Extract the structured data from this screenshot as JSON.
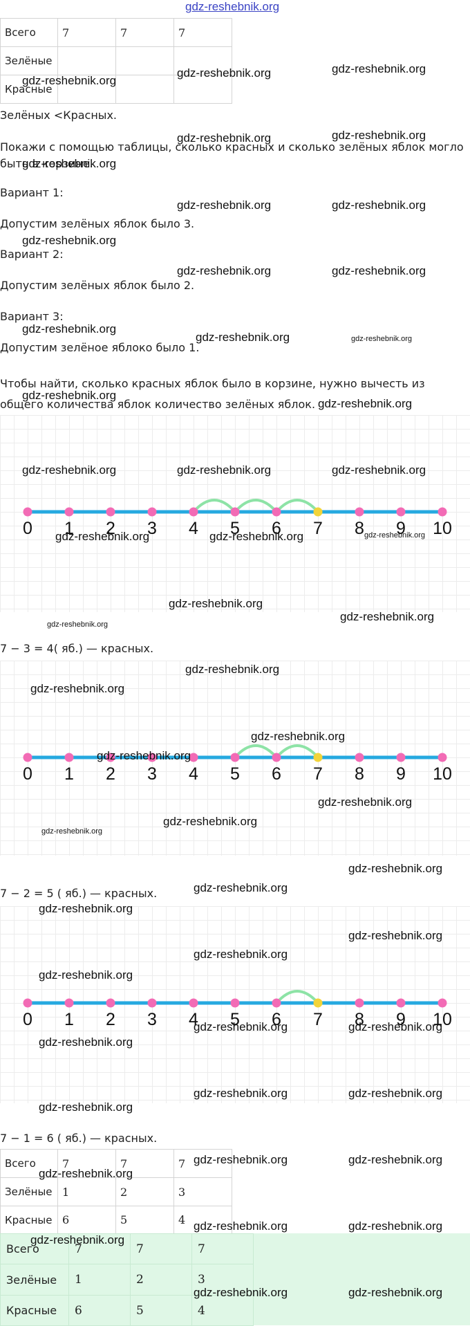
{
  "watermark_text": "gdz-reshebnik.org",
  "table_top": {
    "rows": [
      {
        "label": "Всего",
        "values": [
          "7",
          "7",
          "7"
        ]
      },
      {
        "label": "Зелёные",
        "values": [
          "",
          "",
          ""
        ]
      },
      {
        "label": "Красные",
        "values": [
          "",
          "",
          ""
        ]
      }
    ]
  },
  "text": {
    "compare": "Зелёных <Красных.",
    "task": "Покажи с помощью таблицы, сколько красных и сколько зелёных яблок могло быть в корзине.",
    "v1": "Вариант 1:",
    "v1_assume": "Допустим зелёных яблок было 3.",
    "v2": "Вариант 2:",
    "v2_assume": "Допустим зелёных яблок было 2.",
    "v3": "Вариант 3:",
    "v3_assume": "Допустим зелёное яблоко было 1.",
    "explain": "Чтобы найти, сколько красных яблок было в корзине, нужно вычесть из общего количества яблок количество зелёных яблок.",
    "eq1": "7 − 3 = 4( яб.) — красных.",
    "eq2": "7 − 2 = 5 ( яб.) — красных.",
    "eq3": "7 − 1 = 6 ( яб.) — красных."
  },
  "number_lines": {
    "labels": [
      "0",
      "1",
      "2",
      "3",
      "4",
      "5",
      "6",
      "7",
      "8",
      "9",
      "10"
    ],
    "colors": {
      "line": "#26a9e0",
      "point": "#f26bb5",
      "target": "#f2d43a",
      "arc": "#8de3a6"
    },
    "diagrams": [
      {
        "target": 7,
        "arcs_from": 4
      },
      {
        "target": 7,
        "arcs_from": 5
      },
      {
        "target": 7,
        "arcs_from": 6
      }
    ]
  },
  "table_result": {
    "rows": [
      {
        "label": "Всего",
        "values": [
          "7",
          "7",
          "7"
        ]
      },
      {
        "label": "Зелёные",
        "values": [
          "1",
          "2",
          "3"
        ]
      },
      {
        "label": "Красные",
        "values": [
          "6",
          "5",
          "4"
        ]
      }
    ]
  },
  "table_result_highlight": {
    "background": "#dff7e6",
    "rows": [
      {
        "label": "Всего",
        "values": [
          "7",
          "7",
          "7"
        ]
      },
      {
        "label": "Зелёные",
        "values": [
          "1",
          "2",
          "3"
        ]
      },
      {
        "label": "Красные",
        "values": [
          "6",
          "5",
          "4"
        ]
      }
    ]
  }
}
